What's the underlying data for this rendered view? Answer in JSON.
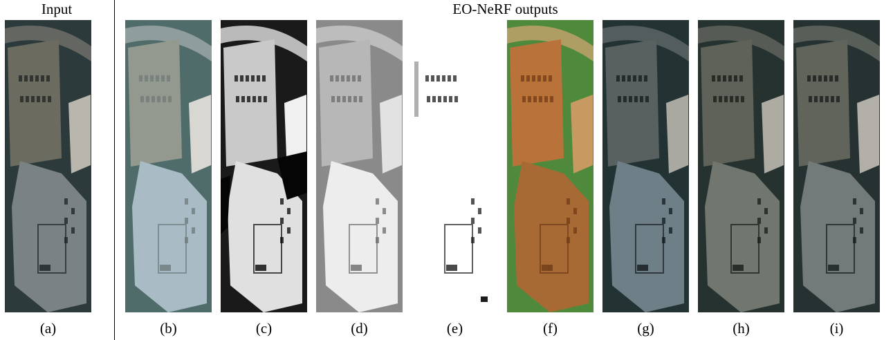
{
  "headings": {
    "input": "Input",
    "outputs": "EO-NeRF outputs"
  },
  "panels": [
    {
      "id": "a",
      "caption": "(a)",
      "style": "rgb",
      "colors": {
        "bg": "#2c3a3b",
        "road": "#6f6f68",
        "roof_top": "#6b6b60",
        "roof_bottom": "#7b8283",
        "accent": "#1c2224",
        "neighbor": "#b9b6ae"
      }
    },
    {
      "id": "b",
      "caption": "(b)",
      "style": "albedo",
      "colors": {
        "bg": "#4f6c6a",
        "road": "#9aa6a4",
        "roof_top": "#93998f",
        "roof_bottom": "#a9bcc6",
        "accent": "#6d7a7a",
        "neighbor": "#d9d7d1"
      }
    },
    {
      "id": "c",
      "caption": "(c)",
      "style": "shadow",
      "colors": {
        "bg": "#1a1a1a",
        "road": "#d7d7d7",
        "roof_top": "#c9c9c9",
        "roof_bottom": "#e0e0e0",
        "accent": "#050505",
        "neighbor": "#f0f0f0"
      }
    },
    {
      "id": "d",
      "caption": "(d)",
      "style": "gray",
      "colors": {
        "bg": "#8a8a8a",
        "road": "#c6c6c6",
        "roof_top": "#b7b7b7",
        "roof_bottom": "#ededed",
        "accent": "#6a6a6a",
        "neighbor": "#e2e2e2"
      }
    },
    {
      "id": "e",
      "caption": "(e)",
      "style": "mask",
      "colors": {
        "bg": "#ffffff",
        "road": "#ffffff",
        "roof_top": "#ffffff",
        "roof_bottom": "#ffffff",
        "accent": "#1b1b1b",
        "neighbor": "#ffffff"
      }
    },
    {
      "id": "f",
      "caption": "(f)",
      "style": "dsm",
      "colors": {
        "bg": "#4f8a3c",
        "road": "#bfa16a",
        "roof_top": "#b8723a",
        "roof_bottom": "#a86a34",
        "accent": "#6e3c18",
        "neighbor": "#c79a62"
      }
    },
    {
      "id": "g",
      "caption": "(g)",
      "style": "rgb",
      "colors": {
        "bg": "#233233",
        "road": "#5d6566",
        "roof_top": "#596060",
        "roof_bottom": "#6e7f88",
        "accent": "#141a1c",
        "neighbor": "#a9a9a2"
      }
    },
    {
      "id": "h",
      "caption": "(h)",
      "style": "rgb",
      "colors": {
        "bg": "#263230",
        "road": "#5f645c",
        "roof_top": "#5e6258",
        "roof_bottom": "#71776f",
        "accent": "#161b19",
        "neighbor": "#aeaba2"
      }
    },
    {
      "id": "i",
      "caption": "(i)",
      "style": "rgb",
      "colors": {
        "bg": "#263131",
        "road": "#62665f",
        "roof_top": "#61645b",
        "roof_bottom": "#737b7a",
        "accent": "#161b1c",
        "neighbor": "#b2afa8"
      }
    }
  ]
}
